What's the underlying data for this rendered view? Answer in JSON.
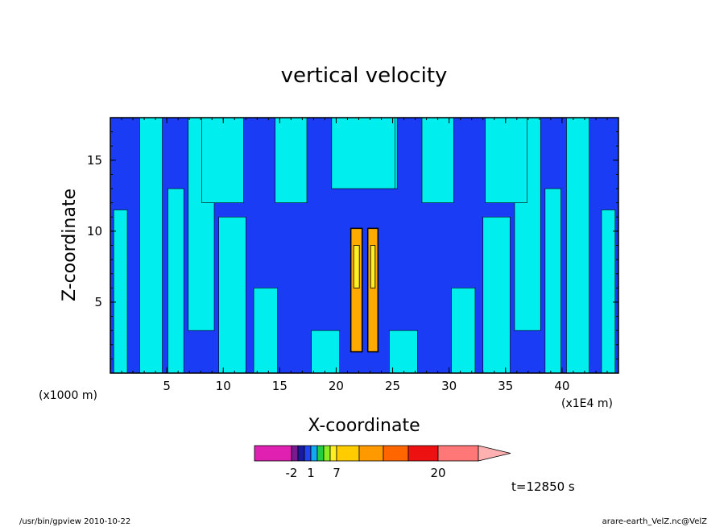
{
  "chart_data": {
    "type": "heatmap",
    "title": "vertical velocity",
    "xlabel": "X-coordinate",
    "ylabel": "Z-coordinate",
    "x_unit_label": "(x1E4 m)",
    "y_unit_label": "(x1000 m)",
    "xlim": [
      0,
      45
    ],
    "ylim": [
      0,
      18
    ],
    "x_ticks": [
      5,
      10,
      15,
      20,
      25,
      30,
      35,
      40
    ],
    "y_ticks": [
      5,
      10,
      15
    ],
    "colorbar": {
      "levels": [
        -2,
        1,
        7,
        20
      ],
      "tick_labels": [
        "-2",
        "1",
        "7",
        "20"
      ],
      "colors": [
        "#e020b0",
        "#7a1a90",
        "#1a1aa0",
        "#2244ee",
        "#11aaee",
        "#22cc44",
        "#88ee22",
        "#ffee22",
        "#ffcc00",
        "#ff9900",
        "#ff6600",
        "#ee1111",
        "#ff7777",
        "#ffb0b0"
      ]
    },
    "fill_colors": {
      "negative": "#1a3cf5",
      "positive": "#00eeee",
      "strong": "#ffaa00",
      "core": "#ffee22"
    },
    "time_label": "t=12850 s"
  },
  "footer": {
    "left": "/usr/bin/gpview   2010-10-22",
    "right": "arare-earth_VelZ.nc@VelZ"
  }
}
